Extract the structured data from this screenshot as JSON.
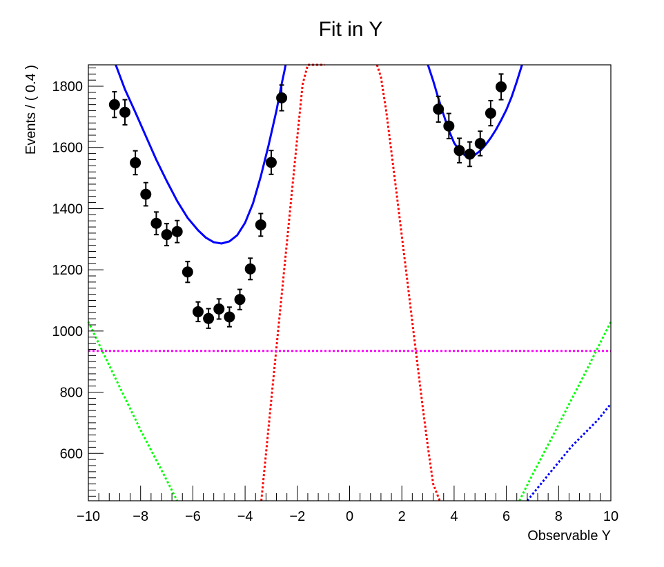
{
  "chart_data": {
    "type": "scatter",
    "title": "Fit in Y",
    "xlabel": "Observable Y",
    "ylabel": "Events / ( 0.4 )",
    "xlim": [
      -10,
      10
    ],
    "ylim": [
      445,
      1870
    ],
    "xticks": [
      "−10",
      "−8",
      "−6",
      "−4",
      "−2",
      "0",
      "2",
      "4",
      "6",
      "8",
      "10"
    ],
    "yticks": [
      "600",
      "800",
      "1000",
      "1200",
      "1400",
      "1600",
      "1800"
    ],
    "grid": false,
    "legend": "none",
    "data_points": {
      "color": "#000000",
      "x": [
        -9.0,
        -8.6,
        -8.2,
        -7.8,
        -7.4,
        -7.0,
        -6.6,
        -6.2,
        -5.8,
        -5.4,
        -5.0,
        -4.6,
        -4.2,
        -3.8,
        -3.4,
        -3.0,
        -2.6,
        3.4,
        3.8,
        4.2,
        4.6,
        5.0,
        5.4,
        5.8
      ],
      "y": [
        1740,
        1715,
        1550,
        1447,
        1352,
        1315,
        1325,
        1193,
        1063,
        1041,
        1072,
        1046,
        1103,
        1203,
        1347,
        1551,
        1762,
        1725,
        1670,
        1590,
        1578,
        1613,
        1712,
        1798
      ],
      "err": [
        42,
        41,
        39,
        38,
        37,
        36,
        36,
        34,
        32,
        32,
        33,
        32,
        33,
        35,
        37,
        39,
        42,
        42,
        41,
        40,
        40,
        40,
        41,
        42
      ]
    },
    "curves": [
      {
        "style": "solid",
        "color": "#0000ff",
        "segments": [
          {
            "x": [
              -8.95,
              -8.6,
              -8.2,
              -7.8,
              -7.4,
              -7.0,
              -6.6,
              -6.2,
              -5.8,
              -5.5,
              -5.2,
              -4.9,
              -4.6,
              -4.3,
              -4.0,
              -3.7,
              -3.4,
              -3.1,
              -2.8,
              -2.6,
              -2.5,
              -2.45
            ],
            "y": [
              1870,
              1790,
              1715,
              1637,
              1560,
              1490,
              1425,
              1370,
              1329,
              1305,
              1290,
              1286,
              1293,
              1313,
              1354,
              1417,
              1505,
              1608,
              1720,
              1808,
              1848,
              1870
            ]
          },
          {
            "x": [
              3.0,
              3.2,
              3.4,
              3.6,
              3.8,
              4.0,
              4.2,
              4.4,
              4.6,
              4.8,
              5.0,
              5.2,
              5.4,
              5.6,
              5.8,
              6.0,
              6.2,
              6.4,
              6.6
            ],
            "y": [
              1870,
              1818,
              1760,
              1706,
              1656,
              1615,
              1590,
              1575,
              1570,
              1576,
              1589,
              1608,
              1631,
              1658,
              1689,
              1723,
              1765,
              1815,
              1870
            ]
          }
        ]
      },
      {
        "style": "dotted",
        "color": "#ff0000",
        "segments": [
          {
            "x": [
              -3.38,
              -3.2,
              -3.0,
              -2.8,
              -2.6,
              -2.4,
              -2.2,
              -2.0,
              -1.8,
              -1.6,
              -1.4,
              -1.2,
              -1.05,
              -0.95
            ],
            "y": [
              445,
              600,
              772,
              945,
              1118,
              1290,
              1462,
              1635,
              1806,
              1870,
              1870,
              1870,
              1870,
              1870
            ]
          },
          {
            "x": [
              1.05,
              1.2,
              1.4,
              1.6,
              1.8,
              2.0,
              2.2,
              2.4,
              2.6,
              2.8,
              3.0,
              3.2,
              3.45
            ],
            "y": [
              1870,
              1830,
              1720,
              1585,
              1450,
              1310,
              1170,
              1030,
              890,
              750,
              620,
              500,
              445
            ]
          }
        ]
      },
      {
        "style": "dotted",
        "color": "#ff00ff",
        "segments": [
          {
            "x": [
              -10,
              10
            ],
            "y": [
              935,
              935
            ]
          }
        ]
      },
      {
        "style": "dotted",
        "color": "#00ff00",
        "segments": [
          {
            "x": [
              -10,
              -9.0,
              -8.0,
              -7.0,
              -6.6
            ],
            "y": [
              1030,
              852,
              676,
              512,
              445
            ]
          },
          {
            "x": [
              6.5,
              7.0,
              8.0,
              9.0,
              10.0
            ],
            "y": [
              445,
              530,
              694,
              860,
              1030
            ]
          }
        ]
      },
      {
        "style": "dotted",
        "color": "#0000ff",
        "segments": [
          {
            "x": [
              6.8,
              7.5,
              8.5,
              9.5,
              10.0
            ],
            "y": [
              445,
              519,
              623,
              709,
              762
            ]
          }
        ]
      }
    ]
  }
}
